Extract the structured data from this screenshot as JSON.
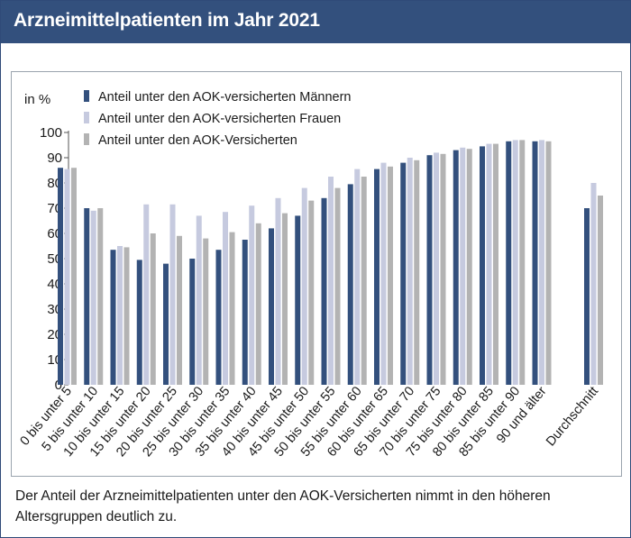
{
  "header": {
    "title": "Arzneimittelpatienten im Jahr 2021"
  },
  "caption": "Der Anteil der Arzneimittelpatienten unter den AOK-Versicherten nimmt in den höheren Altersgruppen deutlich zu.",
  "colors": {
    "header_bg": "#33507d",
    "men": "#33507d",
    "women": "#c6cadf",
    "all": "#b3b3b3"
  },
  "chart_data": {
    "type": "bar",
    "title": "Arzneimittelpatienten im Jahr 2021",
    "ylabel": "in %",
    "xlabel": "",
    "ylim": [
      0,
      100
    ],
    "yticks": [
      0,
      10,
      20,
      30,
      40,
      50,
      60,
      70,
      80,
      90,
      100
    ],
    "grid": false,
    "legend_position": "top-left",
    "categories": [
      "0 bis unter 5",
      "5 bis unter 10",
      "10 bis unter 15",
      "15 bis unter 20",
      "20 bis unter 25",
      "25 bis unter 30",
      "30 bis unter 35",
      "35 bis unter 40",
      "40 bis unter 45",
      "45 bis unter 50",
      "50 bis unter 55",
      "55 bis unter 60",
      "60 bis unter 65",
      "65 bis unter 70",
      "70 bis unter 75",
      "75 bis unter 80",
      "80 bis unter 85",
      "85 bis unter 90",
      "90 und älter",
      "Durchschnitt"
    ],
    "series": [
      {
        "name": "Anteil unter den AOK-versicherten Männern",
        "color": "#33507d",
        "values": [
          86,
          70,
          53.5,
          49.5,
          48,
          50,
          53.5,
          57.5,
          62,
          67,
          74,
          79.5,
          85.5,
          88,
          91,
          93,
          94.5,
          96.5,
          96.5,
          70
        ]
      },
      {
        "name": "Anteil unter den AOK-versicherten Frauen",
        "color": "#c6cadf",
        "values": [
          85.5,
          69,
          55,
          71.5,
          71.5,
          67,
          68.5,
          71,
          74,
          78,
          82.5,
          85.5,
          88,
          90,
          92,
          94,
          95.5,
          97,
          97,
          80
        ]
      },
      {
        "name": "Anteil unter den AOK-Versicherten",
        "color": "#b3b3b3",
        "values": [
          86,
          70,
          54.5,
          60,
          59,
          58,
          60.5,
          64,
          68,
          73,
          78,
          82.5,
          86.5,
          89,
          91.5,
          93.5,
          95.5,
          97,
          96.5,
          75
        ]
      }
    ]
  }
}
